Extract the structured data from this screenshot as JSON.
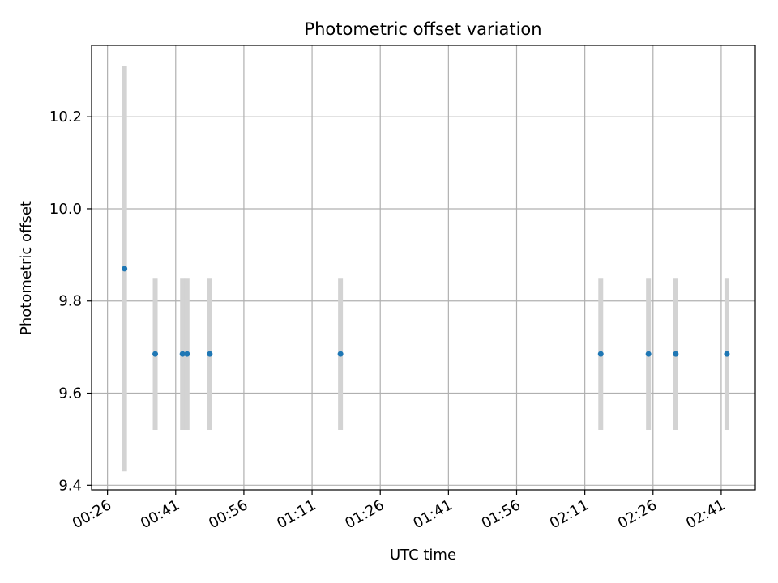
{
  "chart_data": {
    "type": "scatter",
    "title": "Photometric offset variation",
    "xlabel": "UTC time",
    "ylabel": "Photometric offset",
    "x_ticks": [
      "00:26",
      "00:41",
      "00:56",
      "01:11",
      "01:26",
      "01:41",
      "01:56",
      "02:11",
      "02:26",
      "02:41"
    ],
    "y_ticks": [
      "9.4",
      "9.6",
      "9.8",
      "10.0",
      "10.2"
    ],
    "xlim": [
      "00:22:30",
      "02:48:30"
    ],
    "ylim": [
      9.39,
      10.355
    ],
    "grid": true,
    "series": [
      {
        "x": [
          "00:29:45",
          "00:36:30",
          "00:42:30",
          "00:43:30",
          "00:48:30",
          "01:17:15",
          "02:14:30",
          "02:25:00",
          "02:31:00",
          "02:42:15"
        ],
        "y": [
          9.87,
          9.685,
          9.685,
          9.685,
          9.685,
          9.685,
          9.685,
          9.685,
          9.685,
          9.685
        ],
        "error": [
          0.44,
          0.165,
          0.165,
          0.165,
          0.165,
          0.165,
          0.165,
          0.165,
          0.165,
          0.165
        ],
        "color": "#1f77b4",
        "error_color": "#d3d3d3"
      }
    ]
  }
}
